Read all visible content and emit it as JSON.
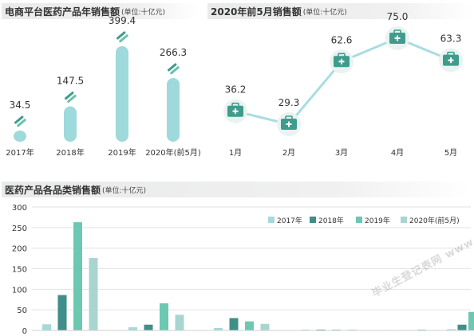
{
  "colors": {
    "c2017": "#a6dad9",
    "c2018": "#3f8e87",
    "c2019": "#6dc8b2",
    "c2020": "#a9d5d0",
    "pill": "#9ed9dc",
    "line": "#a8dde1",
    "marker_bg": "#e9f3f1",
    "briefcase": "#3f9c8c",
    "axis_text": "#333333"
  },
  "panel1": {
    "title": "电商平台医药产品年销售额",
    "unit": "(单位:十亿元)",
    "icon": "pill-capsule-icon",
    "chart_data": {
      "type": "bar",
      "categories": [
        "2017年",
        "2018年",
        "2019年",
        "2020年(前5月)"
      ],
      "values": [
        34.5,
        147.5,
        399.4,
        266.3
      ],
      "value_labels": [
        "34.5",
        "147.5",
        "399.4",
        "266.3"
      ]
    }
  },
  "panel2": {
    "title": "2020年前5月销售额",
    "unit": "(单位:十亿元)",
    "icon": "medical-briefcase-icon",
    "chart_data": {
      "type": "line",
      "categories": [
        "1月",
        "2月",
        "3月",
        "4月",
        "5月"
      ],
      "values": [
        36.2,
        29.3,
        62.6,
        75.0,
        63.3
      ],
      "value_labels": [
        "36.2",
        "29.3",
        "62.6",
        "75.0",
        "63.3"
      ]
    }
  },
  "panel3": {
    "title": "医药产品各品类销售额",
    "unit": "(单位:十亿元)",
    "chart_data": {
      "type": "bar",
      "ylim": [
        0,
        300
      ],
      "yticks": [
        "0",
        "50",
        "100",
        "150",
        "200",
        "250",
        "300"
      ],
      "grid": true,
      "legend_position": "top-right",
      "group_count": 6,
      "series": [
        {
          "name": "2017年",
          "values": [
            15,
            8,
            6,
            2,
            1,
            3
          ]
        },
        {
          "name": "2018年",
          "values": [
            86,
            14,
            30,
            2,
            1,
            14
          ]
        },
        {
          "name": "2019年",
          "values": [
            263,
            66,
            22,
            2,
            2,
            45
          ]
        },
        {
          "name": "2020年(前5月)",
          "values": [
            176,
            38,
            16,
            2,
            1,
            34
          ]
        }
      ]
    }
  },
  "watermark": "毕业生登记表网 www.ehyy.com"
}
